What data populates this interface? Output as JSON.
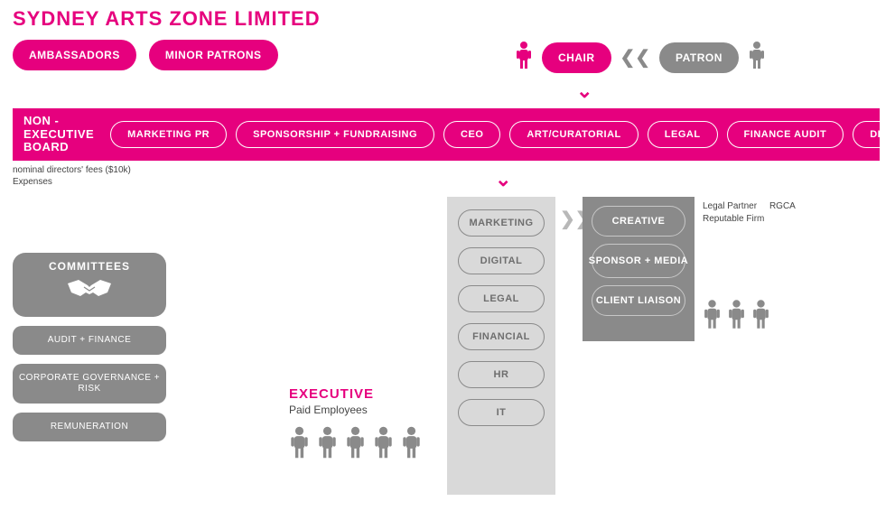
{
  "colors": {
    "pink": "#e6007e",
    "gray": "#8a8a8a",
    "lightgray": "#d9d9d9",
    "white": "#ffffff",
    "text": "#444444"
  },
  "title": "SYDNEY ARTS ZONE LIMITED",
  "top_tags": [
    "AMBASSADORS",
    "MINOR PATRONS"
  ],
  "chair": {
    "label": "CHAIR",
    "patron_label": "PATRON"
  },
  "board": {
    "label_line1": "NON - EXECUTIVE",
    "label_line2": "BOARD",
    "items": [
      "MARKETING PR",
      "SPONSORSHIP + FUNDRAISING",
      "CEO",
      "ART/CURATORIAL",
      "LEGAL",
      "FINANCE AUDIT",
      "DIGITAL"
    ]
  },
  "board_note_line1": "nominal directors' fees ($10k)",
  "board_note_line2": "Expenses",
  "exec_col": [
    "MARKETING",
    "DIGITAL",
    "LEGAL",
    "FINANCIAL",
    "HR",
    "IT"
  ],
  "agency_col": [
    "CREATIVE",
    "SPONSOR + MEDIA",
    "CLIENT LIAISON"
  ],
  "agency_notes": {
    "line1a": "Legal Partner",
    "line1b": "RGCA",
    "line2": "Reputable Firm"
  },
  "agency_people_count": 3,
  "executive": {
    "title": "EXECUTIVE",
    "sub": "Paid Employees",
    "people_count": 5
  },
  "committees": {
    "header": "COMMITTEES",
    "items": [
      "AUDIT + FINANCE",
      "CORPORATE GOVERNANCE + RISK",
      "REMUNERATION"
    ]
  }
}
